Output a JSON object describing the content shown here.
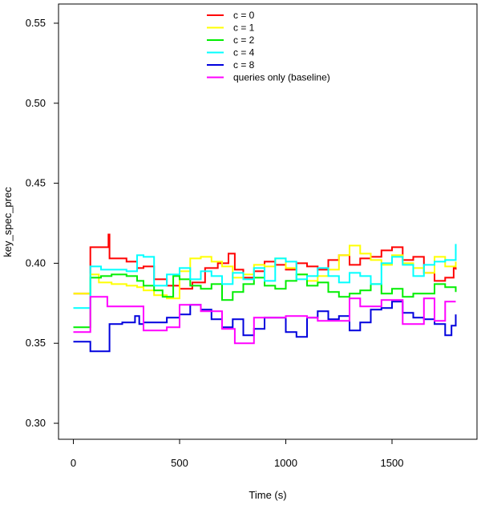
{
  "chart_data": {
    "type": "line",
    "title": "",
    "xlabel": "Time (s)",
    "ylabel": "key_spec_prec",
    "xlim": [
      -70,
      1900
    ],
    "ylim": [
      0.29,
      0.562
    ],
    "xticks": [
      0,
      500,
      1000,
      1500
    ],
    "xtick_labels": [
      "0",
      "500",
      "1000",
      "1500"
    ],
    "yticks": [
      0.3,
      0.35,
      0.4,
      0.45,
      0.5,
      0.55
    ],
    "ytick_labels": [
      "0.30",
      "0.35",
      "0.40",
      "0.45",
      "0.50",
      "0.55"
    ],
    "grid": false,
    "legend_position": "top-center",
    "series": [
      {
        "name": "c = 0",
        "color": "#ff0000",
        "step": true,
        "x": [
          0,
          80,
          165,
          170,
          250,
          300,
          330,
          380,
          440,
          500,
          560,
          620,
          680,
          730,
          760,
          800,
          850,
          900,
          950,
          1000,
          1050,
          1100,
          1150,
          1200,
          1250,
          1300,
          1350,
          1400,
          1450,
          1500,
          1550,
          1600,
          1650,
          1700,
          1750,
          1790,
          1800
        ],
        "y": [
          0.381,
          0.41,
          0.418,
          0.403,
          0.401,
          0.397,
          0.398,
          0.39,
          0.386,
          0.384,
          0.388,
          0.397,
          0.4,
          0.406,
          0.396,
          0.391,
          0.395,
          0.401,
          0.399,
          0.396,
          0.4,
          0.398,
          0.396,
          0.402,
          0.405,
          0.399,
          0.403,
          0.404,
          0.408,
          0.41,
          0.402,
          0.404,
          0.394,
          0.389,
          0.391,
          0.397,
          0.396
        ]
      },
      {
        "name": "c = 1",
        "color": "#ffff00",
        "step": true,
        "x": [
          0,
          80,
          120,
          180,
          250,
          300,
          330,
          380,
          440,
          500,
          550,
          600,
          650,
          700,
          750,
          800,
          850,
          900,
          950,
          1000,
          1050,
          1100,
          1150,
          1200,
          1250,
          1300,
          1350,
          1400,
          1450,
          1500,
          1550,
          1600,
          1650,
          1700,
          1750,
          1800
        ],
        "y": [
          0.381,
          0.393,
          0.388,
          0.387,
          0.386,
          0.385,
          0.383,
          0.38,
          0.378,
          0.395,
          0.403,
          0.404,
          0.401,
          0.398,
          0.391,
          0.393,
          0.399,
          0.398,
          0.403,
          0.397,
          0.393,
          0.389,
          0.392,
          0.396,
          0.405,
          0.411,
          0.406,
          0.402,
          0.399,
          0.405,
          0.4,
          0.397,
          0.394,
          0.404,
          0.398,
          0.401
        ]
      },
      {
        "name": "c = 2",
        "color": "#00ee00",
        "step": true,
        "x": [
          0,
          80,
          130,
          180,
          250,
          300,
          330,
          380,
          420,
          470,
          500,
          550,
          600,
          650,
          700,
          750,
          800,
          850,
          900,
          950,
          1000,
          1050,
          1100,
          1150,
          1200,
          1250,
          1300,
          1350,
          1400,
          1450,
          1500,
          1550,
          1600,
          1650,
          1700,
          1750,
          1800
        ],
        "y": [
          0.36,
          0.391,
          0.392,
          0.393,
          0.392,
          0.389,
          0.386,
          0.383,
          0.379,
          0.392,
          0.39,
          0.386,
          0.384,
          0.387,
          0.377,
          0.382,
          0.387,
          0.391,
          0.386,
          0.384,
          0.389,
          0.393,
          0.386,
          0.388,
          0.382,
          0.379,
          0.381,
          0.383,
          0.387,
          0.381,
          0.384,
          0.379,
          0.381,
          0.381,
          0.387,
          0.385,
          0.382
        ]
      },
      {
        "name": "c = 4",
        "color": "#00ffff",
        "step": true,
        "x": [
          0,
          80,
          130,
          180,
          250,
          300,
          330,
          380,
          440,
          500,
          550,
          600,
          650,
          700,
          750,
          800,
          850,
          900,
          950,
          1000,
          1050,
          1100,
          1150,
          1200,
          1250,
          1300,
          1350,
          1400,
          1450,
          1500,
          1550,
          1600,
          1650,
          1700,
          1750,
          1800
        ],
        "y": [
          0.372,
          0.398,
          0.396,
          0.396,
          0.395,
          0.405,
          0.404,
          0.386,
          0.393,
          0.397,
          0.39,
          0.395,
          0.392,
          0.387,
          0.394,
          0.39,
          0.397,
          0.389,
          0.403,
          0.401,
          0.39,
          0.392,
          0.397,
          0.392,
          0.388,
          0.394,
          0.392,
          0.387,
          0.4,
          0.404,
          0.399,
          0.392,
          0.399,
          0.401,
          0.402,
          0.412
        ]
      },
      {
        "name": "c = 8",
        "color": "#0000dd",
        "step": true,
        "x": [
          0,
          80,
          170,
          230,
          290,
          310,
          330,
          380,
          440,
          500,
          550,
          600,
          650,
          700,
          750,
          800,
          850,
          900,
          950,
          1000,
          1050,
          1100,
          1150,
          1200,
          1250,
          1300,
          1350,
          1400,
          1450,
          1500,
          1550,
          1600,
          1650,
          1700,
          1750,
          1780,
          1800
        ],
        "y": [
          0.351,
          0.345,
          0.362,
          0.363,
          0.367,
          0.362,
          0.363,
          0.363,
          0.366,
          0.368,
          0.374,
          0.371,
          0.365,
          0.36,
          0.365,
          0.355,
          0.359,
          0.366,
          0.366,
          0.357,
          0.354,
          0.366,
          0.37,
          0.365,
          0.367,
          0.358,
          0.363,
          0.371,
          0.372,
          0.376,
          0.369,
          0.366,
          0.365,
          0.362,
          0.355,
          0.361,
          0.368
        ]
      },
      {
        "name": "queries only (baseline)",
        "color": "#ff00ff",
        "step": true,
        "x": [
          0,
          80,
          160,
          330,
          440,
          500,
          600,
          700,
          760,
          850,
          1000,
          1100,
          1150,
          1250,
          1300,
          1350,
          1400,
          1450,
          1550,
          1650,
          1700,
          1750,
          1800
        ],
        "y": [
          0.357,
          0.379,
          0.373,
          0.358,
          0.36,
          0.374,
          0.37,
          0.359,
          0.35,
          0.366,
          0.367,
          0.366,
          0.364,
          0.364,
          0.378,
          0.373,
          0.373,
          0.377,
          0.362,
          0.378,
          0.364,
          0.376,
          0.376
        ]
      }
    ]
  }
}
